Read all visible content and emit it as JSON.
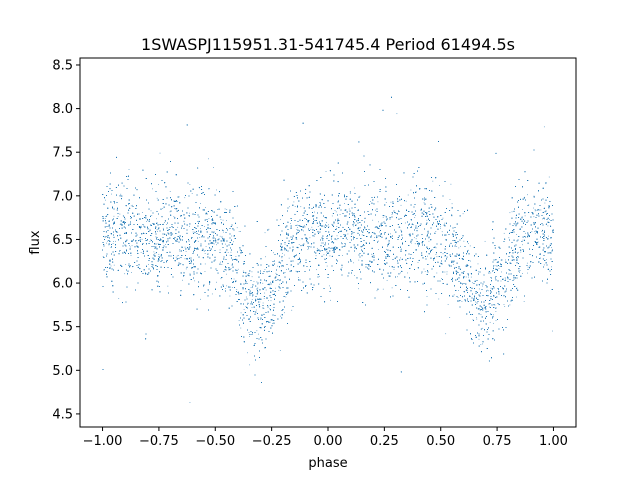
{
  "chart_data": {
    "type": "scatter",
    "title": "1SWASPJ115951.31-541745.4 Period 61494.5s",
    "xlabel": "phase",
    "ylabel": "flux",
    "xlim": [
      -1.1,
      1.1
    ],
    "ylim": [
      4.35,
      8.58
    ],
    "x_ticks": [
      -1.0,
      -0.75,
      -0.5,
      -0.25,
      0.0,
      0.25,
      0.5,
      0.75,
      1.0
    ],
    "x_tick_labels": [
      "−1.00",
      "−0.75",
      "−0.50",
      "−0.25",
      "0.00",
      "0.25",
      "0.50",
      "0.75",
      "1.00"
    ],
    "y_ticks": [
      4.5,
      5.0,
      5.5,
      6.0,
      6.5,
      7.0,
      7.5,
      8.0,
      8.5
    ],
    "y_tick_labels": [
      "4.5",
      "5.0",
      "5.5",
      "6.0",
      "6.5",
      "7.0",
      "7.5",
      "8.0",
      "8.5"
    ],
    "grid": false,
    "marker_color": "#1f77b4",
    "phase_range": [
      -1.0,
      1.0
    ],
    "baseline_flux": 6.55,
    "eclipse_minima": [
      {
        "phase": -0.31,
        "flux": 5.75,
        "half_width": 0.12
      },
      {
        "phase": 0.69,
        "flux": 5.75,
        "half_width": 0.12
      }
    ],
    "scatter_sigma": 0.3,
    "approx_point_count": 30000
  }
}
